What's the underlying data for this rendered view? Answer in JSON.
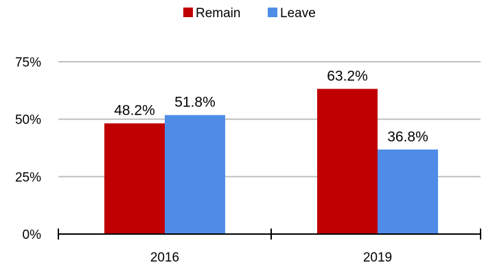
{
  "chart_data": {
    "type": "bar",
    "categories": [
      "2016",
      "2019"
    ],
    "series": [
      {
        "name": "Remain",
        "color": "#c00000",
        "values": [
          48.2,
          63.2
        ],
        "labels": [
          "48.2%",
          "63.2%"
        ]
      },
      {
        "name": "Leave",
        "color": "#4e8ce8",
        "values": [
          51.8,
          36.8
        ],
        "labels": [
          "51.8%",
          "36.8%"
        ]
      }
    ],
    "ylim": [
      0,
      75
    ],
    "yticks": [
      {
        "value": 0,
        "label": "0%"
      },
      {
        "value": 25,
        "label": "25%"
      },
      {
        "value": 50,
        "label": "50%"
      },
      {
        "value": 75,
        "label": "75%"
      }
    ],
    "grid": true,
    "legend": "top-center",
    "grid_color": "#bfbfbf",
    "axis_color": "#000000"
  }
}
